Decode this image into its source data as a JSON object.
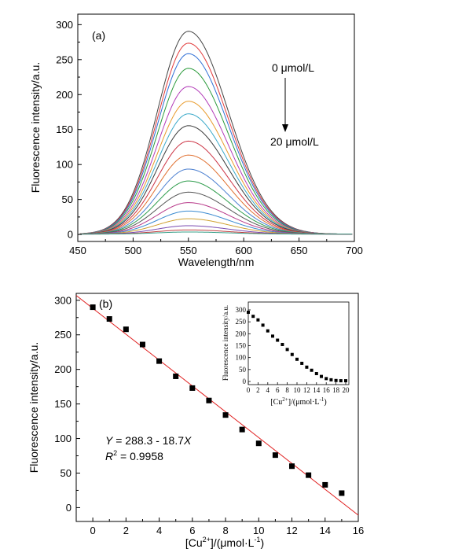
{
  "chart_data": [
    {
      "id": "a",
      "type": "line",
      "panel_label": "(a)",
      "xlabel": "Wavelength/nm",
      "ylabel": "Fluorescence intensity/a.u.",
      "xlim": [
        450,
        700
      ],
      "ylim": [
        -10,
        315
      ],
      "x_ticks": [
        450,
        500,
        550,
        600,
        650,
        700
      ],
      "y_ticks": [
        0,
        50,
        100,
        150,
        200,
        250,
        300
      ],
      "grid": false,
      "peak_wavelength": 550,
      "annotations": {
        "top": "0 μmol/L",
        "bottom": "20 μmol/L"
      },
      "series": [
        {
          "peak": 290,
          "color": "#444444"
        },
        {
          "peak": 273,
          "color": "#e23b3b"
        },
        {
          "peak": 258,
          "color": "#2f6fd6"
        },
        {
          "peak": 237,
          "color": "#2a9a3a"
        },
        {
          "peak": 211,
          "color": "#b23ab8"
        },
        {
          "peak": 190,
          "color": "#e89a2a"
        },
        {
          "peak": 172,
          "color": "#3aa9c9"
        },
        {
          "peak": 155,
          "color": "#3a3a3a"
        },
        {
          "peak": 133,
          "color": "#cc3344"
        },
        {
          "peak": 113,
          "color": "#e07030"
        },
        {
          "peak": 93,
          "color": "#4b7fd0"
        },
        {
          "peak": 76,
          "color": "#2c9b4a"
        },
        {
          "peak": 60,
          "color": "#555555"
        },
        {
          "peak": 45,
          "color": "#b83a8a"
        },
        {
          "peak": 33,
          "color": "#3a8ad0"
        },
        {
          "peak": 22,
          "color": "#d0a030"
        },
        {
          "peak": 12,
          "color": "#7a4ab0"
        },
        {
          "peak": 6,
          "color": "#c04040"
        },
        {
          "peak": 3,
          "color": "#3aa08a"
        }
      ]
    },
    {
      "id": "b",
      "type": "scatter",
      "panel_label": "(b)",
      "xlabel": "[Cu2+]/(μmol·L-1)",
      "xlabel_parts": [
        "[Cu",
        "2+",
        "]/(μmol·L",
        "-1",
        ")"
      ],
      "ylabel": "Fluorescence intensity/a.u.",
      "xlim": [
        -1,
        16
      ],
      "ylim": [
        -20,
        310
      ],
      "x_ticks": [
        0,
        2,
        4,
        6,
        8,
        10,
        12,
        14,
        16
      ],
      "y_ticks": [
        0,
        50,
        100,
        150,
        200,
        250,
        300
      ],
      "grid": false,
      "x": [
        0,
        1,
        2,
        3,
        4,
        5,
        6,
        7,
        8,
        9,
        10,
        11,
        12,
        13,
        14,
        15
      ],
      "y": [
        290,
        273,
        258,
        236,
        212,
        190,
        173,
        155,
        134,
        113,
        93,
        76,
        60,
        47,
        33,
        21
      ],
      "fit": {
        "intercept": 288.3,
        "slope": -18.7,
        "color": "#e02020"
      },
      "equation_parts": [
        "Y",
        " = 288.3 - 18.7",
        "X"
      ],
      "r2_parts": [
        "R",
        "2",
        " = 0.9958"
      ],
      "inset": {
        "type": "scatter",
        "xlabel": "[Cu2+]/(μmol·L-1)",
        "xlabel_parts": [
          "[Cu",
          "2+",
          "]/(μmol·L",
          "-1",
          ")"
        ],
        "ylabel": "Fluorescence intensity/a.u.",
        "xlim": [
          0,
          20
        ],
        "ylim": [
          0,
          300
        ],
        "x_ticks": [
          0,
          2,
          4,
          6,
          8,
          10,
          12,
          14,
          16,
          18,
          20
        ],
        "y_ticks": [
          0,
          50,
          100,
          150,
          200,
          250,
          300
        ],
        "x": [
          0,
          1,
          2,
          3,
          4,
          5,
          6,
          7,
          8,
          9,
          10,
          11,
          12,
          13,
          14,
          15,
          16,
          17,
          18,
          19,
          20
        ],
        "y": [
          290,
          273,
          258,
          236,
          212,
          190,
          173,
          155,
          134,
          113,
          93,
          76,
          60,
          47,
          33,
          21,
          12,
          7,
          4,
          3,
          3
        ]
      }
    }
  ]
}
